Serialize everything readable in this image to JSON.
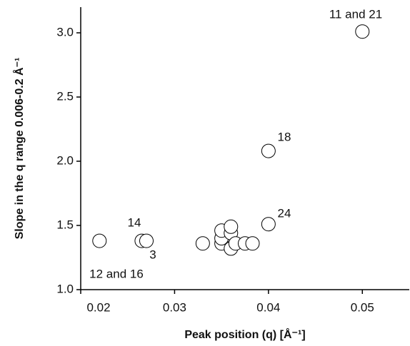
{
  "chart_data": {
    "type": "scatter",
    "x_label": "Peak position (q) [Å⁻¹]",
    "y_label": "Slope in the q range 0.006-0.2 Å⁻¹",
    "x": [
      0.022,
      0.0265,
      0.027,
      0.033,
      0.035,
      0.035,
      0.035,
      0.036,
      0.036,
      0.036,
      0.0365,
      0.0375,
      0.0383,
      0.04,
      0.04,
      0.05
    ],
    "values": [
      1.38,
      1.38,
      1.38,
      1.36,
      1.36,
      1.4,
      1.46,
      1.32,
      1.44,
      1.49,
      1.36,
      1.36,
      1.36,
      1.51,
      2.08,
      3.01
    ],
    "color": "#ffffff",
    "xlim": [
      0.02,
      0.055
    ],
    "xticks": [
      0.02,
      0.03,
      0.04,
      0.05
    ],
    "ylim": [
      1.0,
      3.2
    ],
    "yticks": [
      {
        "value": 1.0,
        "label": "1.0"
      },
      {
        "value": 1.5,
        "label": "1.5"
      },
      {
        "value": 2.0,
        "label": "2.0"
      },
      {
        "value": 2.5,
        "label": "2.5"
      },
      {
        "value": 3.0,
        "label": "3.0"
      }
    ],
    "annotations": [
      "11 and 21",
      "18",
      "24",
      "14",
      "3",
      "12 and 16"
    ]
  }
}
